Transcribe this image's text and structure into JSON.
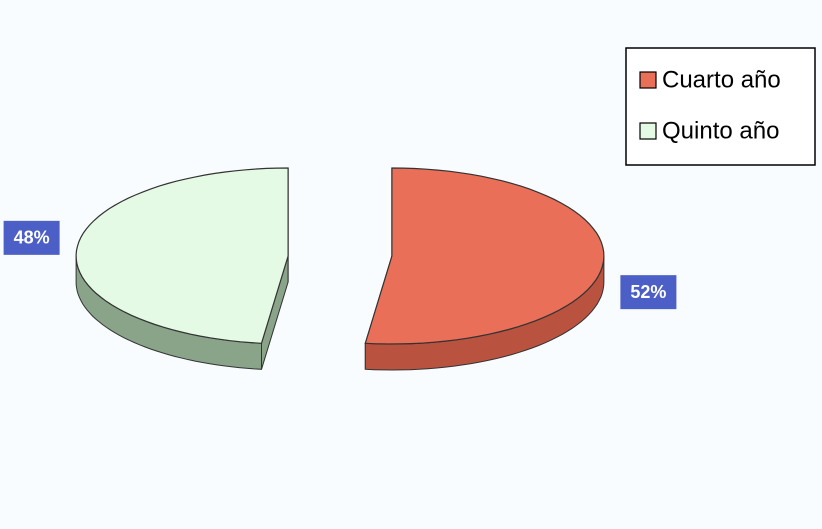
{
  "chart_data": {
    "type": "pie",
    "categories": [
      "Cuarto año",
      "Quinto año"
    ],
    "values": [
      52,
      48
    ],
    "value_labels": [
      "52%",
      "48%"
    ],
    "colors": [
      "#ea6f58",
      "#e4fae4"
    ],
    "side_colors": [
      "#b9523f",
      "#8aa48a"
    ],
    "legend": "top-right"
  }
}
